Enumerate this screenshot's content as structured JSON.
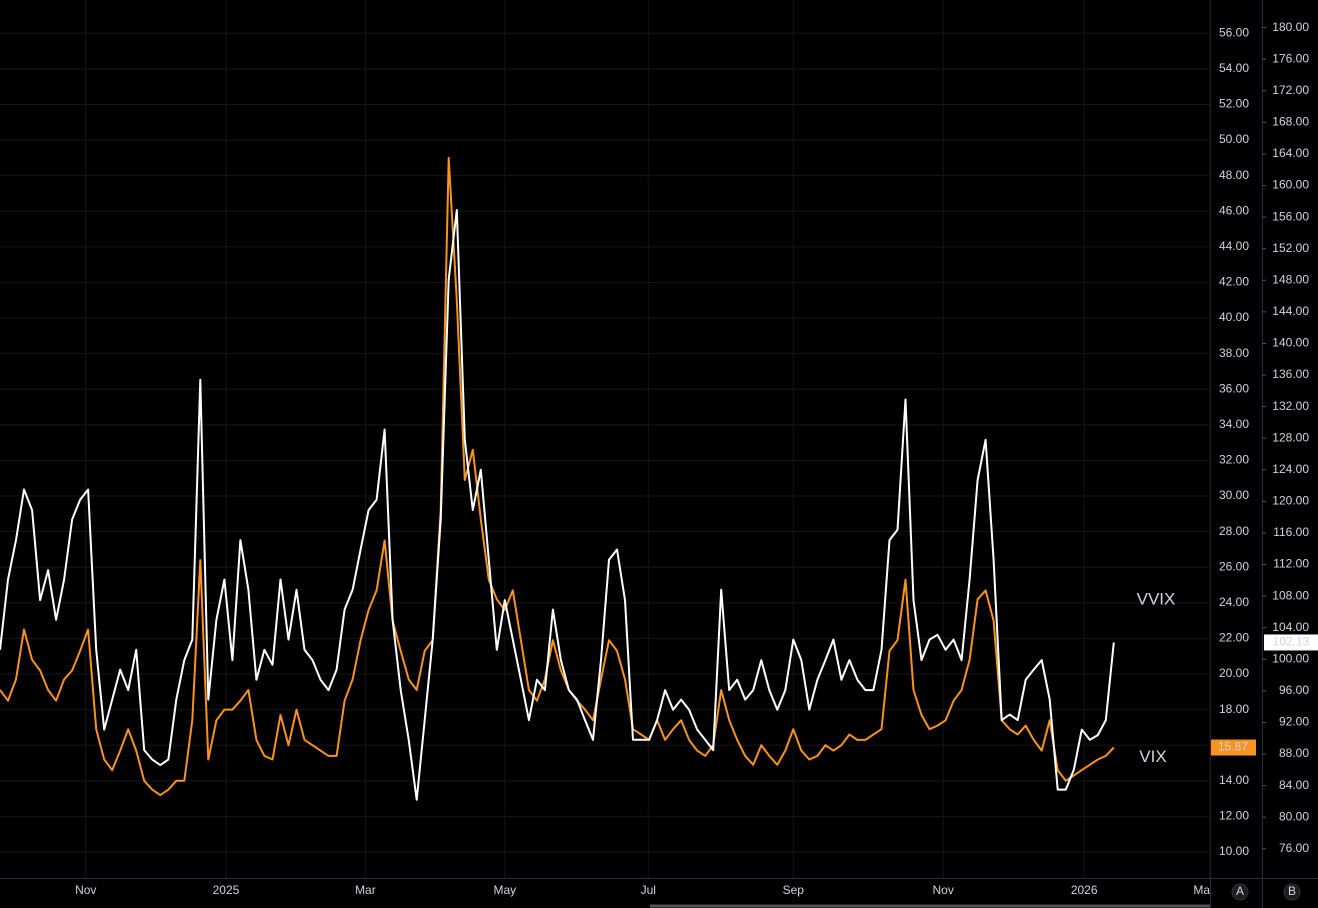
{
  "chart_data": {
    "type": "line",
    "xlim": [
      0,
      151
    ],
    "xticks": [
      {
        "value": 10.7,
        "label": "Nov"
      },
      {
        "value": 28.2,
        "label": "2025"
      },
      {
        "value": 45.6,
        "label": "Mar"
      },
      {
        "value": 63,
        "label": "May"
      },
      {
        "value": 80.9,
        "label": "Jul"
      },
      {
        "value": 99,
        "label": "Sep"
      },
      {
        "value": 117.7,
        "label": "Nov"
      },
      {
        "value": 135.3,
        "label": "2026"
      },
      {
        "value": 151,
        "label": "Ma"
      }
    ],
    "ylim": [
      8.54,
      57.87
    ],
    "yticks": [
      {
        "value": 10,
        "label": "10.00"
      },
      {
        "value": 12,
        "label": "12.00"
      },
      {
        "value": 14,
        "label": "14.00"
      },
      {
        "value": 16,
        "label": "16.00"
      },
      {
        "value": 18,
        "label": "18.00"
      },
      {
        "value": 20,
        "label": "20.00"
      },
      {
        "value": 22,
        "label": "22.00"
      },
      {
        "value": 24,
        "label": "24.00"
      },
      {
        "value": 26,
        "label": "26.00"
      },
      {
        "value": 28,
        "label": "28.00"
      },
      {
        "value": 30,
        "label": "30.00"
      },
      {
        "value": 32,
        "label": "32.00"
      },
      {
        "value": 34,
        "label": "34.00"
      },
      {
        "value": 36,
        "label": "36.00"
      },
      {
        "value": 38,
        "label": "38.00"
      },
      {
        "value": 40,
        "label": "40.00"
      },
      {
        "value": 42,
        "label": "42.00"
      },
      {
        "value": 44,
        "label": "44.00"
      },
      {
        "value": 46,
        "label": "46.00"
      },
      {
        "value": 48,
        "label": "48.00"
      },
      {
        "value": 50,
        "label": "50.00"
      },
      {
        "value": 52,
        "label": "52.00"
      },
      {
        "value": 54,
        "label": "54.00"
      },
      {
        "value": 56,
        "label": "56.00"
      }
    ],
    "y2lim": [
      72.3,
      183.5
    ],
    "y2ticks": [
      {
        "value": 76,
        "label": "76.00"
      },
      {
        "value": 80,
        "label": "80.00"
      },
      {
        "value": 84,
        "label": "84.00"
      },
      {
        "value": 88,
        "label": "88.00"
      },
      {
        "value": 92,
        "label": "92.00"
      },
      {
        "value": 96,
        "label": "96.00"
      },
      {
        "value": 100,
        "label": "100.00"
      },
      {
        "value": 104,
        "label": "104.00"
      },
      {
        "value": 108,
        "label": "108.00"
      },
      {
        "value": 112,
        "label": "112.00"
      },
      {
        "value": 116,
        "label": "116.00"
      },
      {
        "value": 120,
        "label": "120.00"
      },
      {
        "value": 124,
        "label": "124.00"
      },
      {
        "value": 128,
        "label": "128.00"
      },
      {
        "value": 132,
        "label": "132.00"
      },
      {
        "value": 136,
        "label": "136.00"
      },
      {
        "value": 140,
        "label": "140.00"
      },
      {
        "value": 144,
        "label": "144.00"
      },
      {
        "value": 148,
        "label": "148.00"
      },
      {
        "value": 152,
        "label": "152.00"
      },
      {
        "value": 156,
        "label": "156.00"
      },
      {
        "value": 160,
        "label": "160.00"
      },
      {
        "value": 164,
        "label": "164.00"
      },
      {
        "value": 168,
        "label": "168.00"
      },
      {
        "value": 172,
        "label": "172.00"
      },
      {
        "value": 176,
        "label": "176.00"
      },
      {
        "value": 180,
        "label": "180.00"
      }
    ],
    "grid": true,
    "buttons": [
      "A",
      "B"
    ],
    "series": [
      {
        "name": "VVIX",
        "color": "#ffffff",
        "label_color": "#f7931e",
        "axis": "y2",
        "last_value_label": "102.13",
        "values": [
          101.2,
          110.1,
          115.1,
          121.5,
          118.9,
          107.5,
          111.3,
          105.0,
          110.1,
          117.7,
          120.2,
          121.5,
          101.2,
          91.1,
          94.9,
          98.7,
          96.1,
          101.2,
          88.5,
          87.3,
          86.6,
          87.3,
          94.9,
          99.9,
          102.5,
          135.4,
          94.9,
          105.0,
          110.1,
          99.9,
          115.1,
          108.8,
          97.4,
          101.2,
          99.3,
          110.1,
          102.5,
          108.8,
          101.2,
          99.9,
          97.4,
          96.1,
          98.7,
          106.3,
          108.8,
          113.9,
          118.9,
          120.2,
          129.1,
          105.0,
          96.1,
          89.8,
          82.2,
          92.3,
          102.5,
          117.7,
          148.1,
          156.9,
          127.8,
          118.9,
          124.0,
          112.6,
          101.2,
          107.5,
          102.5,
          97.4,
          92.3,
          97.4,
          96.1,
          106.3,
          99.9,
          96.1,
          94.9,
          92.3,
          89.8,
          99.9,
          112.6,
          113.9,
          107.5,
          89.8,
          89.8,
          89.8,
          92.3,
          96.1,
          93.6,
          94.9,
          93.6,
          91.1,
          89.8,
          88.5,
          108.8,
          96.1,
          97.4,
          94.9,
          96.1,
          99.9,
          96.1,
          93.6,
          96.1,
          102.5,
          99.9,
          93.6,
          97.4,
          99.9,
          102.5,
          97.4,
          99.9,
          97.4,
          96.1,
          96.1,
          101.2,
          115.1,
          116.4,
          132.9,
          107.5,
          99.9,
          102.5,
          103.1,
          101.2,
          102.5,
          99.9,
          110.1,
          122.7,
          127.8,
          112.6,
          92.3,
          93.0,
          92.3,
          97.4,
          98.7,
          99.9,
          94.9,
          83.5,
          83.5,
          86.0,
          91.1,
          89.8,
          90.4,
          92.3,
          102.13
        ]
      },
      {
        "name": "VIX",
        "color": "#f7931e",
        "label_color": "#f7931e",
        "axis": "y",
        "last_value_label": "15.87",
        "values": [
          19.1,
          18.5,
          19.7,
          22.5,
          20.8,
          20.2,
          19.1,
          18.5,
          19.7,
          20.2,
          21.3,
          22.5,
          16.9,
          15.2,
          14.6,
          15.7,
          16.9,
          15.7,
          14.0,
          13.5,
          13.2,
          13.5,
          14.0,
          14.0,
          17.4,
          26.4,
          15.2,
          17.4,
          18.0,
          18.0,
          18.5,
          19.1,
          16.3,
          15.4,
          15.2,
          17.7,
          16.0,
          18.0,
          16.3,
          16.0,
          15.7,
          15.4,
          15.4,
          18.5,
          19.7,
          21.9,
          23.6,
          24.7,
          27.5,
          23.0,
          21.3,
          19.7,
          19.1,
          21.3,
          21.9,
          29.2,
          49.0,
          41.0,
          30.9,
          32.6,
          28.7,
          25.3,
          24.2,
          23.6,
          24.7,
          21.9,
          19.1,
          18.5,
          19.7,
          21.9,
          20.2,
          19.1,
          18.5,
          18.0,
          17.4,
          19.7,
          21.9,
          21.3,
          19.7,
          16.9,
          16.6,
          16.3,
          17.4,
          16.3,
          16.9,
          17.4,
          16.3,
          15.7,
          15.4,
          16.0,
          19.1,
          17.4,
          16.3,
          15.4,
          14.9,
          16.0,
          15.4,
          14.9,
          15.7,
          16.9,
          15.7,
          15.2,
          15.4,
          16.0,
          15.7,
          16.0,
          16.6,
          16.3,
          16.3,
          16.6,
          16.9,
          21.3,
          21.9,
          25.3,
          19.1,
          17.7,
          16.9,
          17.1,
          17.4,
          18.5,
          19.1,
          20.8,
          24.2,
          24.7,
          23.0,
          17.4,
          16.9,
          16.6,
          17.1,
          16.3,
          15.7,
          17.4,
          14.6,
          14.0,
          14.3,
          14.6,
          14.9,
          15.2,
          15.4,
          15.87
        ]
      }
    ]
  }
}
